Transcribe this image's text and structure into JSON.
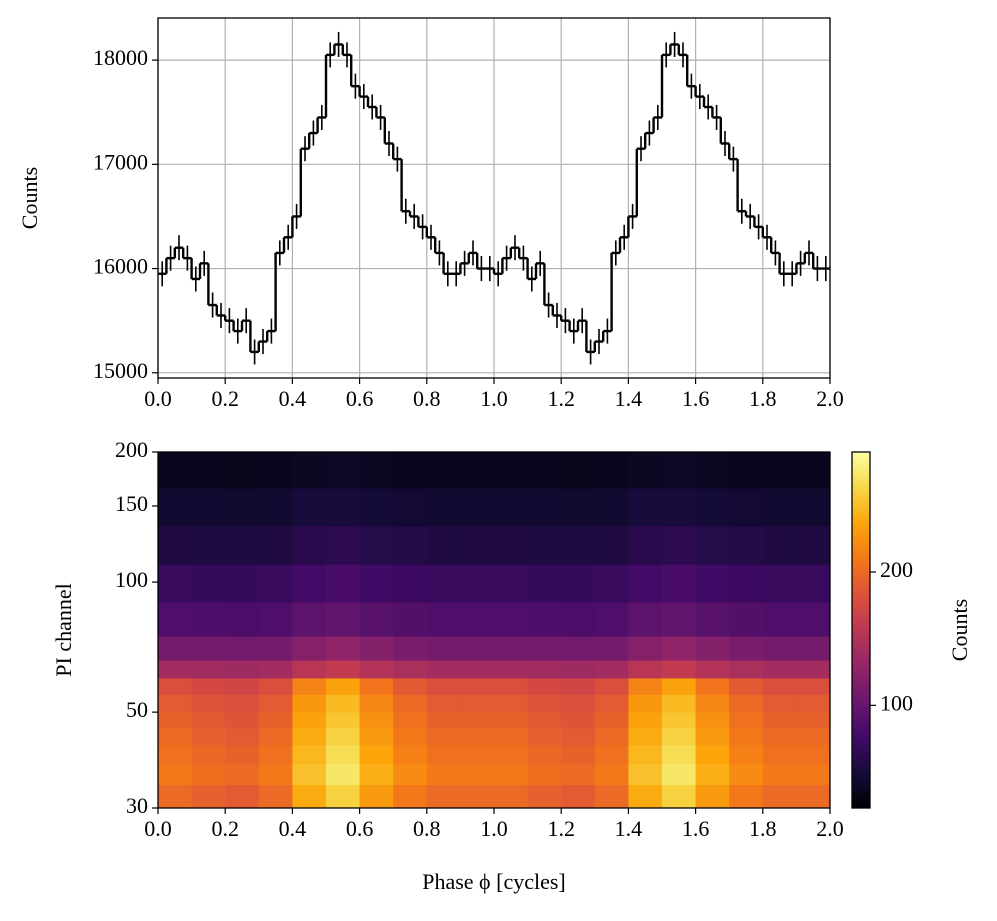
{
  "chart_data": [
    {
      "type": "step",
      "ylabel": "Counts",
      "color": "#000000",
      "grid": true,
      "x": [
        0,
        0.025,
        0.05,
        0.075,
        0.1,
        0.125,
        0.15,
        0.175,
        0.2,
        0.225,
        0.25,
        0.275,
        0.3,
        0.325,
        0.35,
        0.375,
        0.4,
        0.425,
        0.45,
        0.475,
        0.5,
        0.525,
        0.55,
        0.575,
        0.6,
        0.625,
        0.65,
        0.675,
        0.7,
        0.725,
        0.75,
        0.775,
        0.8,
        0.825,
        0.85,
        0.875,
        0.9,
        0.925,
        0.95,
        0.975,
        1,
        1.025,
        1.05,
        1.075,
        1.1,
        1.125,
        1.15,
        1.175,
        1.2,
        1.225,
        1.25,
        1.275,
        1.3,
        1.325,
        1.35,
        1.375,
        1.4,
        1.425,
        1.45,
        1.475,
        1.5,
        1.525,
        1.55,
        1.575,
        1.6,
        1.625,
        1.65,
        1.675,
        1.7,
        1.725,
        1.75,
        1.775,
        1.8,
        1.825,
        1.85,
        1.875,
        1.9,
        1.925,
        1.95,
        1.975
      ],
      "values": [
        15950,
        16100,
        16200,
        16100,
        15900,
        16050,
        15650,
        15550,
        15500,
        15400,
        15500,
        15200,
        15300,
        15400,
        16150,
        16300,
        16500,
        17150,
        17300,
        17450,
        18050,
        18150,
        18050,
        17750,
        17650,
        17550,
        17450,
        17200,
        17050,
        16550,
        16500,
        16400,
        16300,
        16150,
        15950,
        15950,
        16050,
        16150,
        16000,
        16000,
        15950,
        16100,
        16200,
        16100,
        15900,
        16050,
        15650,
        15550,
        15500,
        15400,
        15500,
        15200,
        15300,
        15400,
        16150,
        16300,
        16500,
        17150,
        17300,
        17450,
        18050,
        18150,
        18050,
        17750,
        17650,
        17550,
        17450,
        17200,
        17050,
        16550,
        16500,
        16400,
        16300,
        16150,
        15950,
        15950,
        16050,
        16150,
        16000,
        16000
      ],
      "error": 120,
      "xlim": [
        0,
        2
      ],
      "ylim": [
        14950,
        18404
      ],
      "xticks": [
        {
          "value": 0,
          "label": "0.0"
        },
        {
          "value": 0.2,
          "label": "0.2"
        },
        {
          "value": 0.4,
          "label": "0.4"
        },
        {
          "value": 0.6,
          "label": "0.6"
        },
        {
          "value": 0.8,
          "label": "0.8"
        },
        {
          "value": 1,
          "label": "1.0"
        },
        {
          "value": 1.2,
          "label": "1.2"
        },
        {
          "value": 1.4,
          "label": "1.4"
        },
        {
          "value": 1.6,
          "label": "1.6"
        },
        {
          "value": 1.8,
          "label": "1.8"
        },
        {
          "value": 2,
          "label": "2.0"
        }
      ],
      "yticks": [
        15000,
        16000,
        17000,
        18000
      ]
    },
    {
      "type": "heatmap",
      "xlabel": "Phase ϕ [cycles]",
      "ylabel": "PI channel",
      "colormap": "inferno",
      "yscale": "log",
      "xbins": [
        0,
        0.1,
        0.2,
        0.3,
        0.4,
        0.5,
        0.6,
        0.7,
        0.8,
        0.9,
        1,
        1.1,
        1.2,
        1.3,
        1.4,
        1.5,
        1.6,
        1.7,
        1.8,
        1.9,
        2
      ],
      "ybins": [
        30,
        34,
        38,
        42,
        46,
        50,
        55,
        60,
        66,
        75,
        90,
        110,
        135,
        165,
        200
      ],
      "z": [
        [
          200,
          194,
          190,
          200,
          240,
          260,
          230,
          210,
          200,
          200,
          200,
          194,
          190,
          200,
          240,
          260,
          230,
          210,
          200,
          200
        ],
        [
          210,
          204,
          200,
          210,
          252,
          273,
          242,
          221,
          210,
          210,
          210,
          204,
          200,
          210,
          252,
          273,
          242,
          221,
          210,
          210
        ],
        [
          205,
          199,
          195,
          205,
          246,
          267,
          236,
          215,
          205,
          205,
          205,
          199,
          195,
          205,
          246,
          267,
          236,
          215,
          205,
          205
        ],
        [
          200,
          194,
          190,
          200,
          240,
          260,
          230,
          210,
          200,
          200,
          200,
          194,
          190,
          200,
          240,
          260,
          230,
          210,
          200,
          200
        ],
        [
          195,
          189,
          185,
          195,
          234,
          254,
          224,
          205,
          195,
          195,
          195,
          189,
          185,
          195,
          234,
          254,
          224,
          205,
          195,
          195
        ],
        [
          190,
          184,
          181,
          190,
          228,
          247,
          219,
          200,
          190,
          190,
          190,
          184,
          181,
          190,
          228,
          247,
          219,
          200,
          190,
          190
        ],
        [
          180,
          175,
          171,
          180,
          216,
          234,
          207,
          189,
          180,
          180,
          180,
          175,
          171,
          180,
          216,
          234,
          207,
          189,
          180,
          180
        ],
        [
          140,
          139,
          137,
          140,
          154,
          161,
          151,
          144,
          140,
          140,
          140,
          139,
          137,
          140,
          154,
          161,
          151,
          144,
          140,
          140
        ],
        [
          110,
          109,
          108,
          110,
          121,
          127,
          119,
          113,
          110,
          110,
          110,
          109,
          108,
          110,
          121,
          127,
          119,
          113,
          110,
          110
        ],
        [
          85,
          84,
          83,
          85,
          94,
          98,
          92,
          88,
          85,
          85,
          85,
          84,
          83,
          85,
          94,
          98,
          92,
          88,
          85,
          85
        ],
        [
          70,
          69,
          69,
          70,
          77,
          81,
          76,
          72,
          70,
          70,
          70,
          69,
          69,
          70,
          77,
          81,
          76,
          72,
          70,
          70
        ],
        [
          55,
          54,
          54,
          55,
          61,
          63,
          59,
          57,
          55,
          55,
          55,
          54,
          54,
          55,
          61,
          63,
          59,
          57,
          55,
          55
        ],
        [
          45,
          45,
          44,
          45,
          50,
          52,
          49,
          46,
          45,
          45,
          45,
          45,
          44,
          45,
          50,
          52,
          49,
          46,
          45,
          45
        ],
        [
          35,
          35,
          34,
          35,
          39,
          40,
          38,
          36,
          35,
          35,
          35,
          35,
          34,
          35,
          39,
          40,
          38,
          36,
          35,
          35
        ]
      ],
      "clim": [
        23,
        290
      ],
      "xlim": [
        0,
        2
      ],
      "ylim": [
        30,
        200
      ],
      "xticks": [
        {
          "value": 0,
          "label": "0.0"
        },
        {
          "value": 0.2,
          "label": "0.2"
        },
        {
          "value": 0.4,
          "label": "0.4"
        },
        {
          "value": 0.6,
          "label": "0.6"
        },
        {
          "value": 0.8,
          "label": "0.8"
        },
        {
          "value": 1,
          "label": "1.0"
        },
        {
          "value": 1.2,
          "label": "1.2"
        },
        {
          "value": 1.4,
          "label": "1.4"
        },
        {
          "value": 1.6,
          "label": "1.6"
        },
        {
          "value": 1.8,
          "label": "1.8"
        },
        {
          "value": 2,
          "label": "2.0"
        }
      ],
      "yticks": [
        30,
        50,
        100,
        150,
        200
      ],
      "colorbar": {
        "label": "Counts",
        "ticks": [
          100,
          200
        ]
      }
    }
  ]
}
